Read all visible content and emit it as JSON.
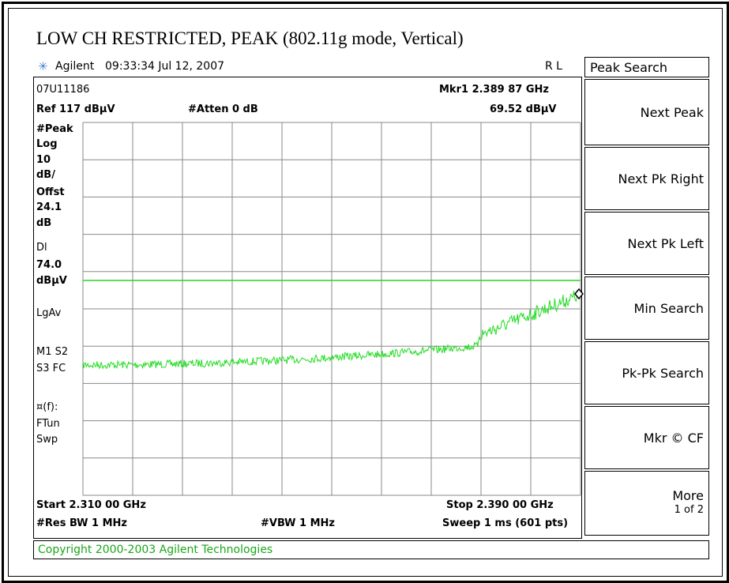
{
  "title": "LOW CH RESTRICTED, PEAK (802.11g mode, Vertical)",
  "header": {
    "brand": "Agilent",
    "time": "09:33:34  Jul 12, 2007",
    "status": "R L"
  },
  "screen": {
    "file": "07U11186",
    "marker": "Mkr1  2.389 87 GHz",
    "ref": "Ref 117 dBµV",
    "atten": "#Atten 0 dB",
    "marker_level": "69.52 dBµV",
    "side_labels": [
      "#Peak",
      "Log",
      "10",
      "dB/",
      "Offst",
      "24.1",
      "dB",
      "Dl",
      "74.0",
      "dBµV",
      "LgAv",
      "M1  S2",
      "S3  FC",
      "¤(f):",
      "FTun",
      "Swp"
    ],
    "start": "Start 2.310 00 GHz",
    "stop": "Stop 2.390 00 GHz",
    "rbw": "#Res BW 1 MHz",
    "vbw": "#VBW 1 MHz",
    "sweep": "Sweep 1 ms (601 pts)"
  },
  "softkeys": {
    "menu": "Peak Search",
    "keys": [
      {
        "label": "Next Peak"
      },
      {
        "label": "Next Pk Right"
      },
      {
        "label": "Next Pk Left"
      },
      {
        "label": "Min Search"
      },
      {
        "label": "Pk-Pk Search"
      },
      {
        "label": "Mkr © CF"
      },
      {
        "label": "More",
        "sub": "1 of 2"
      }
    ]
  },
  "copyright": "Copyright 2000-2003 Agilent Technologies"
}
